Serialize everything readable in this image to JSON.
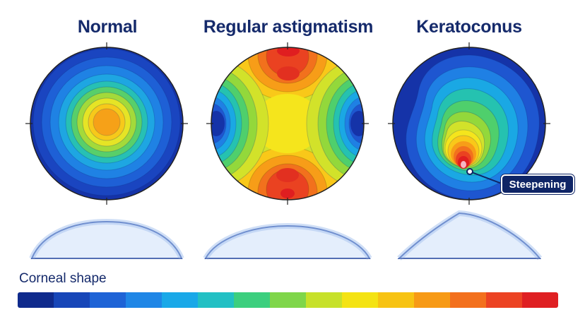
{
  "panels": [
    {
      "title": "Normal",
      "pattern": "concentric"
    },
    {
      "title": "Regular astigmatism",
      "pattern": "bowtie"
    },
    {
      "title": "Keratoconus",
      "pattern": "cone"
    }
  ],
  "callout": {
    "label": "Steepening"
  },
  "scale": {
    "label": "Corneal shape",
    "colors": [
      "#0f2a8c",
      "#1746b8",
      "#1e63d6",
      "#1f86e6",
      "#19a8e8",
      "#22c0c4",
      "#3ccf7e",
      "#7fd64a",
      "#c7e12a",
      "#f4e313",
      "#f7c313",
      "#f79a16",
      "#f3701d",
      "#ec4323",
      "#df1f22"
    ]
  },
  "palette": {
    "title_color": "#152a6b",
    "heat": [
      "#1533a8",
      "#1e56d0",
      "#1f80e4",
      "#1aa8e4",
      "#25c2b0",
      "#4fcf6c",
      "#93d83b",
      "#d2e22a",
      "#f5e51c",
      "#f9c819",
      "#f79d18",
      "#f2711d",
      "#ea4221",
      "#e01e20"
    ]
  }
}
